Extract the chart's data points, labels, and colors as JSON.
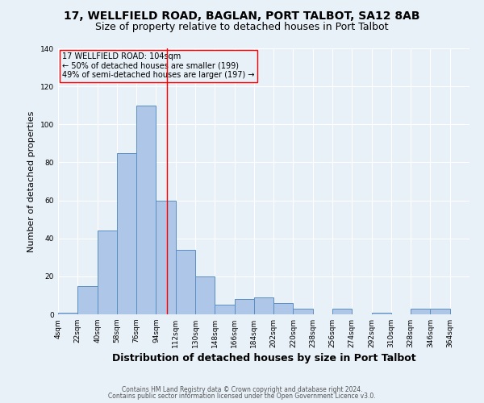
{
  "title": "17, WELLFIELD ROAD, BAGLAN, PORT TALBOT, SA12 8AB",
  "subtitle": "Size of property relative to detached houses in Port Talbot",
  "xlabel": "Distribution of detached houses by size in Port Talbot",
  "ylabel": "Number of detached properties",
  "footnote1": "Contains HM Land Registry data © Crown copyright and database right 2024.",
  "footnote2": "Contains public sector information licensed under the Open Government Licence v3.0.",
  "annotation_line1": "17 WELLFIELD ROAD: 104sqm",
  "annotation_line2": "← 50% of detached houses are smaller (199)",
  "annotation_line3": "49% of semi-detached houses are larger (197) →",
  "bin_labels": [
    "4sqm",
    "22sqm",
    "40sqm",
    "58sqm",
    "76sqm",
    "94sqm",
    "112sqm",
    "130sqm",
    "148sqm",
    "166sqm",
    "184sqm",
    "202sqm",
    "220sqm",
    "238sqm",
    "256sqm",
    "274sqm",
    "292sqm",
    "310sqm",
    "328sqm",
    "346sqm",
    "364sqm"
  ],
  "bar_heights": [
    1,
    15,
    44,
    85,
    110,
    60,
    34,
    20,
    5,
    8,
    9,
    6,
    3,
    0,
    3,
    0,
    1,
    0,
    3,
    3
  ],
  "bar_color": "#aec6e8",
  "bar_edge_color": "#5a8fc2",
  "vline_x": 104,
  "ylim": [
    0,
    140
  ],
  "bg_color": "#e8f0f8",
  "grid_color": "white",
  "title_fontsize": 10,
  "subtitle_fontsize": 9,
  "ylabel_fontsize": 8,
  "xlabel_fontsize": 9,
  "tick_fontsize": 6.5,
  "footnote_fontsize": 5.5,
  "annotation_fontsize": 7
}
